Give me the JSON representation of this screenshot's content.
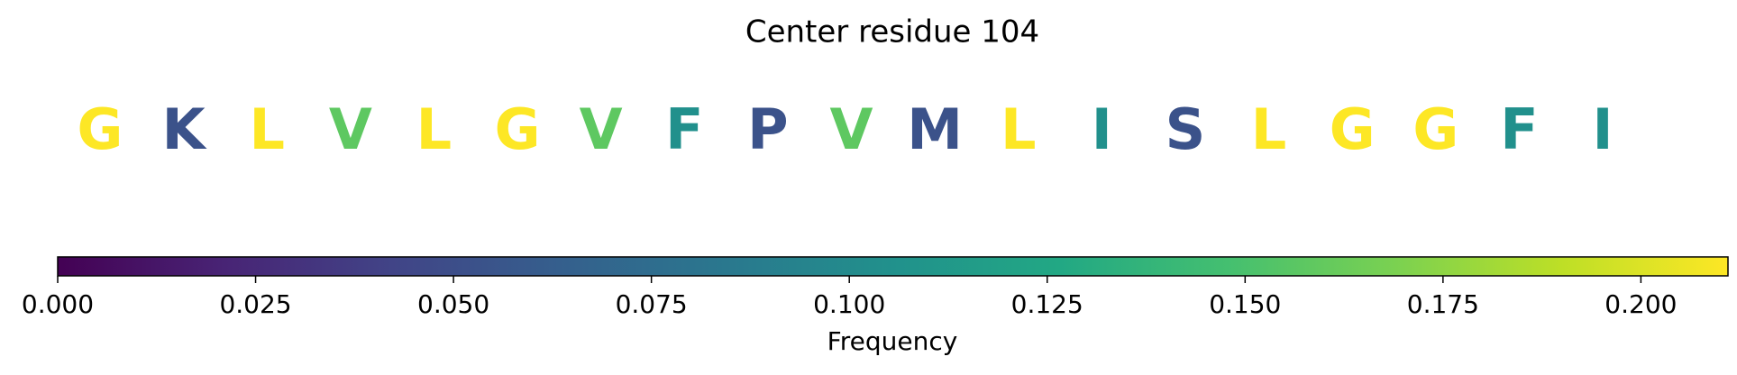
{
  "chart_data": {
    "type": "sequence-colorbar",
    "title": "Center residue 104",
    "categories": [
      "G",
      "K",
      "L",
      "V",
      "L",
      "G",
      "V",
      "F",
      "P",
      "V",
      "M",
      "L",
      "I",
      "S",
      "L",
      "G",
      "G",
      "F",
      "I"
    ],
    "values": [
      0.211,
      0.053,
      0.211,
      0.158,
      0.211,
      0.211,
      0.158,
      0.105,
      0.053,
      0.158,
      0.053,
      0.211,
      0.105,
      0.053,
      0.211,
      0.211,
      0.211,
      0.105,
      0.105
    ],
    "colormap": "viridis",
    "xlabel": "Frequency",
    "xlim": [
      0,
      0.211
    ],
    "xticks": [
      {
        "value": 0,
        "label": "0.000"
      },
      {
        "value": 0.025,
        "label": "0.025"
      },
      {
        "value": 0.05,
        "label": "0.050"
      },
      {
        "value": 0.075,
        "label": "0.075"
      },
      {
        "value": 0.1,
        "label": "0.100"
      },
      {
        "value": 0.125,
        "label": "0.125"
      },
      {
        "value": 0.15,
        "label": "0.150"
      },
      {
        "value": 0.175,
        "label": "0.175"
      },
      {
        "value": 0.2,
        "label": "0.200"
      }
    ]
  }
}
